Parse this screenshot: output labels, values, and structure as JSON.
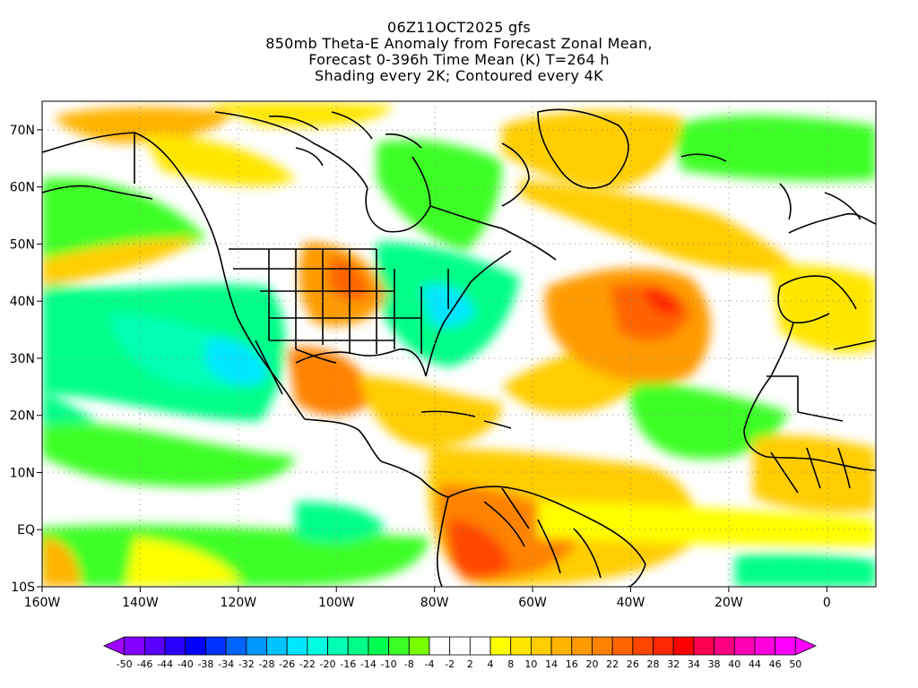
{
  "title": {
    "line1": "06Z11OCT2025 gfs",
    "line2": "850mb Theta-E Anomaly from Forecast Zonal Mean,",
    "line3": "Forecast 0-396h Time Mean (K) T=264 h",
    "line4": "Shading every 2K; Contoured every 4K"
  },
  "map": {
    "lon_range": [
      -160,
      10
    ],
    "lat_range": [
      -10,
      75
    ],
    "lon_ticks": [
      "160W",
      "140W",
      "120W",
      "100W",
      "80W",
      "60W",
      "40W",
      "20W",
      "0"
    ],
    "lat_ticks": [
      "10S",
      "EQ",
      "10N",
      "20N",
      "30N",
      "40N",
      "50N",
      "60N",
      "70N"
    ],
    "lon_tick_values": [
      -160,
      -140,
      -120,
      -100,
      -80,
      -60,
      -40,
      -20,
      0
    ],
    "lat_tick_values": [
      -10,
      0,
      10,
      20,
      30,
      40,
      50,
      60,
      70
    ],
    "grid": "dotted"
  },
  "colorbar": {
    "labels": [
      "-50",
      "-46",
      "-44",
      "-40",
      "-38",
      "-34",
      "-32",
      "-28",
      "-26",
      "-22",
      "-20",
      "-16",
      "-14",
      "-10",
      "-8",
      "-4",
      "-2",
      "2",
      "4",
      "8",
      "10",
      "14",
      "16",
      "20",
      "22",
      "26",
      "28",
      "32",
      "34",
      "38",
      "40",
      "44",
      "46",
      "50"
    ],
    "colors": [
      "#a000ff",
      "#8200ff",
      "#5a00ff",
      "#2800ff",
      "#0000ff",
      "#0032ff",
      "#0064ff",
      "#0096ff",
      "#00c3ff",
      "#00e6ff",
      "#00ffe1",
      "#00ffb4",
      "#00ff87",
      "#00ff50",
      "#3cff28",
      "#78ff00",
      "#ffffff",
      "#ffffff",
      "#ffffff",
      "#ffff00",
      "#ffe600",
      "#ffcd00",
      "#ffb400",
      "#ff9b00",
      "#ff8200",
      "#ff6400",
      "#ff4600",
      "#ff2800",
      "#ff0000",
      "#ff0050",
      "#ff0082",
      "#ff00b4",
      "#ff00dc",
      "#ff00ff",
      "#ff00ff"
    ]
  }
}
